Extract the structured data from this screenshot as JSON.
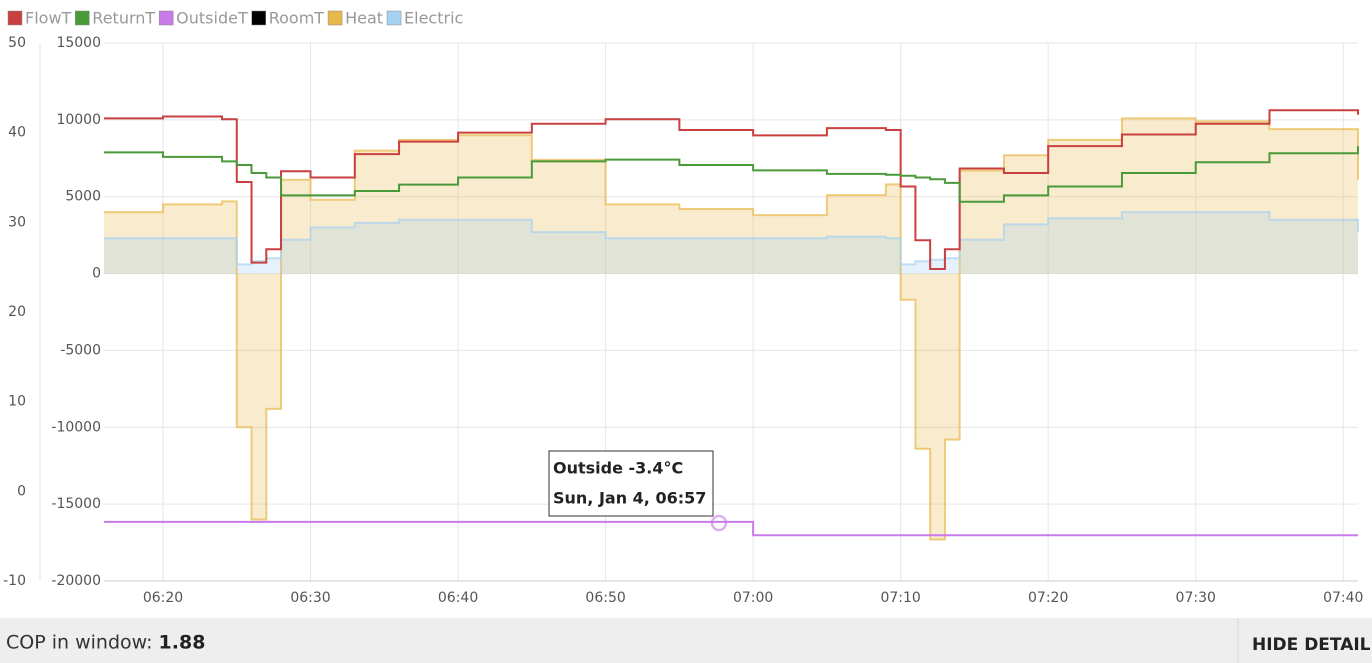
{
  "chart_data": {
    "type": "line",
    "step": true,
    "x": [
      "06:16",
      "06:20",
      "06:24",
      "06:25",
      "06:26",
      "06:27",
      "06:28",
      "06:30",
      "06:33",
      "06:36",
      "06:40",
      "06:45",
      "06:50",
      "06:55",
      "07:00",
      "07:05",
      "07:09",
      "07:10",
      "07:11",
      "07:12",
      "07:13",
      "07:14",
      "07:17",
      "07:20",
      "07:25",
      "07:30",
      "07:35",
      "07:41"
    ],
    "xlim": [
      "06:16",
      "07:41"
    ],
    "xticks": [
      "06:20",
      "06:30",
      "06:40",
      "06:50",
      "07:00",
      "07:10",
      "07:20",
      "07:30",
      "07:40"
    ],
    "ylim": [
      -10,
      50
    ],
    "yticks": [
      50,
      40,
      30,
      20,
      10,
      0,
      -10
    ],
    "y2lim": [
      -20000,
      15000
    ],
    "y2ticks": [
      15000,
      10000,
      5000,
      0,
      -5000,
      -10000,
      -15000,
      -20000
    ],
    "grid": true,
    "legend": "top-left",
    "series": [
      {
        "name": "FlowT",
        "color": "#c94040",
        "values": [
          41.6,
          41.8,
          41.5,
          34.5,
          25.5,
          27,
          35.7,
          35,
          37.6,
          39,
          40,
          41,
          41.5,
          40.3,
          39.7,
          40.5,
          40.3,
          34,
          28,
          24.8,
          27,
          36,
          35.5,
          38.5,
          39.8,
          41,
          42.5,
          42
        ]
      },
      {
        "name": "ReturnT",
        "color": "#4a9a3a",
        "values": [
          37.8,
          37.3,
          36.8,
          36.4,
          35.5,
          35,
          33,
          33,
          33.5,
          34.2,
          35,
          36.8,
          37,
          36.4,
          35.8,
          35.4,
          35.3,
          35.2,
          35,
          34.8,
          34.4,
          32.3,
          33,
          34,
          35.5,
          36.7,
          37.7,
          38.5
        ]
      },
      {
        "name": "OutsideT",
        "color": "#c77ae8",
        "values": [
          -3.4,
          -3.4,
          -3.4,
          -3.4,
          -3.4,
          -3.4,
          -3.4,
          -3.4,
          -3.4,
          -3.4,
          -3.4,
          -3.4,
          -3.4,
          -3.4,
          -4.9,
          -4.9,
          -4.9,
          -4.9,
          -4.9,
          -4.9,
          -4.9,
          -4.9,
          -4.9,
          -4.9,
          -4.9,
          -4.9,
          -4.9,
          -4.9
        ]
      },
      {
        "name": "RoomT",
        "color": "#000000",
        "values": [
          null,
          null,
          null,
          null,
          null,
          null,
          null,
          null,
          null,
          null,
          null,
          null,
          null,
          null,
          null,
          null,
          null,
          null,
          null,
          null,
          null,
          null,
          null,
          null,
          null,
          null,
          null,
          null
        ]
      },
      {
        "name": "Heat",
        "color": "#e8b84a",
        "axis": "y2",
        "fill": true,
        "values": [
          4000,
          4500,
          4700,
          -10000,
          -16000,
          -8800,
          6100,
          4800,
          8000,
          8700,
          9000,
          7400,
          4500,
          4200,
          3800,
          5100,
          5800,
          -1700,
          -11400,
          -17300,
          -10800,
          6700,
          7700,
          8700,
          10100,
          9900,
          9400,
          6100
        ]
      },
      {
        "name": "Electric",
        "color": "#a6d2f2",
        "axis": "y2",
        "fill": true,
        "values": [
          2300,
          2300,
          2300,
          600,
          800,
          1000,
          2200,
          3000,
          3300,
          3500,
          3500,
          2700,
          2300,
          2300,
          2300,
          2400,
          2300,
          600,
          800,
          900,
          1000,
          2200,
          3200,
          3600,
          4000,
          4000,
          3500,
          2700
        ]
      }
    ],
    "tooltip": [
      "Outside -3.4°C",
      "Sun, Jan 4, 06:57"
    ]
  },
  "footer": {
    "cop_label": "COP in window:",
    "cop_value": "1.88",
    "button": "HIDE DETAIL"
  }
}
